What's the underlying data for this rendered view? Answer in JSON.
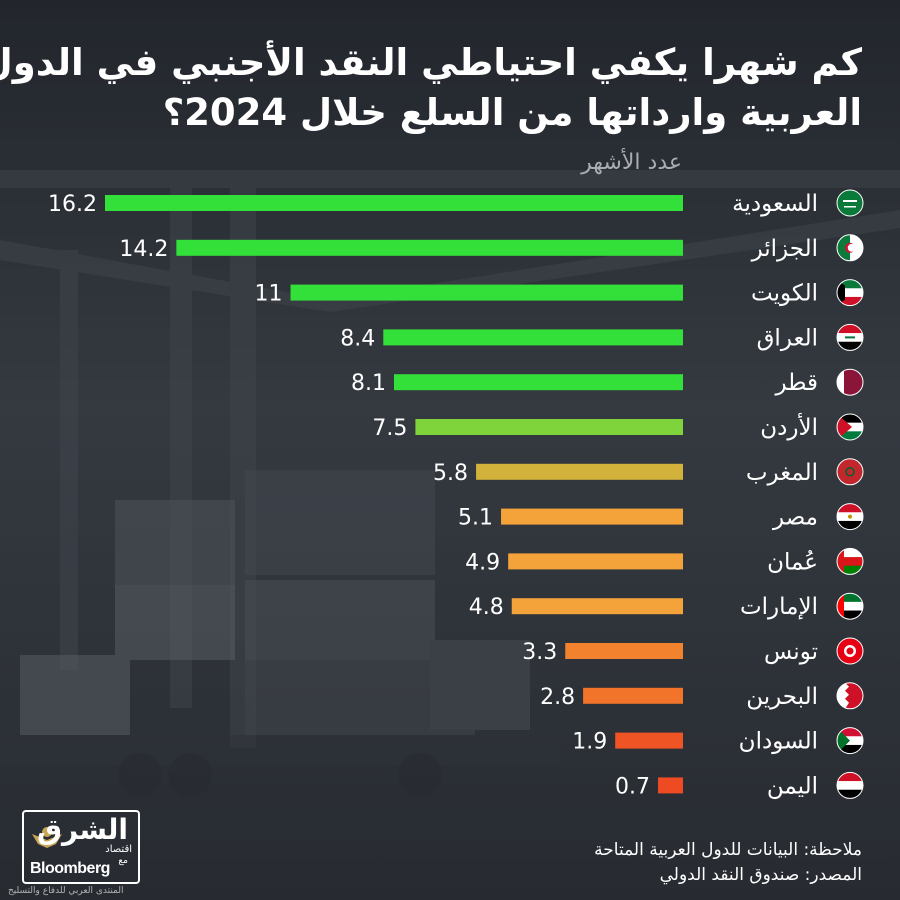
{
  "title_lines": [
    "كم شهرا يكفي احتياطي النقد الأجنبي في الدول",
    "العربية وارداتها من السلع خلال 2024؟"
  ],
  "chart_data": {
    "type": "bar",
    "orientation": "horizontal",
    "unit_label": "عدد الأشهر",
    "categories": [
      "السعودية",
      "الجزائر",
      "الكويت",
      "العراق",
      "قطر",
      "الأردن",
      "المغرب",
      "مصر",
      "عُمان",
      "الإمارات",
      "تونس",
      "البحرين",
      "السودان",
      "اليمن"
    ],
    "values": [
      16.2,
      14.2,
      11,
      8.4,
      8.1,
      7.5,
      5.8,
      5.1,
      4.9,
      4.8,
      3.3,
      2.8,
      1.9,
      0.7
    ],
    "value_labels": [
      "16.2",
      "14.2",
      "11",
      "8.4",
      "8.1",
      "7.5",
      "5.8",
      "5.1",
      "4.9",
      "4.8",
      "3.3",
      "2.8",
      "1.9",
      "0.7"
    ],
    "bar_colors": [
      "#33e03a",
      "#33e03a",
      "#33e03a",
      "#33e03a",
      "#33e03a",
      "#7ed43a",
      "#d3b23c",
      "#f4a23a",
      "#f4a23a",
      "#f4a23a",
      "#f2822e",
      "#f2742a",
      "#ef5524",
      "#ee4b22"
    ],
    "flag_icons": [
      "flag-saudi-arabia",
      "flag-algeria",
      "flag-kuwait",
      "flag-iraq",
      "flag-qatar",
      "flag-jordan",
      "flag-morocco",
      "flag-egypt",
      "flag-oman",
      "flag-uae",
      "flag-tunisia",
      "flag-bahrain",
      "flag-sudan",
      "flag-yemen"
    ],
    "xlim": [
      0,
      16.2
    ]
  },
  "notes": {
    "note": "ملاحظة: البيانات للدول العربية المتاحة",
    "source": "المصدر: صندوق النقد الدولي"
  },
  "logo": {
    "arabic": "الشرق",
    "sub": "اقتصاد",
    "with": "مع",
    "english": "Bloomberg"
  },
  "watermark": "المنتدى العربي للدفاع والتسليح",
  "colors": {
    "background": "#2b2f36",
    "title": "#ffffff",
    "unit_label": "#a9adb3",
    "high": "#33e03a",
    "low": "#ee4b22"
  }
}
